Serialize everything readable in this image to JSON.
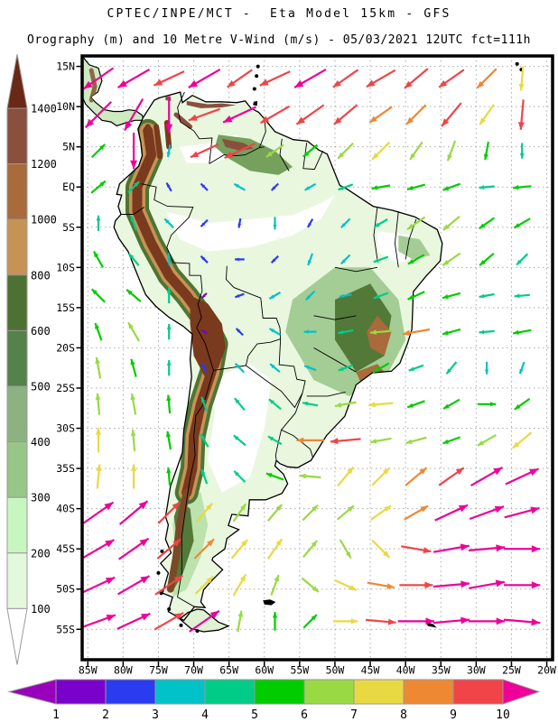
{
  "header": {
    "line1": "CPTEC/INPE/MCT -  Eta Model 15km - GFS",
    "line2": "Orography (m) and 10 Metre V-Wind (m/s) - 05/03/2021 12UTC fct=111h"
  },
  "map": {
    "lat_tick_labels": [
      "15N",
      "10N",
      "5N",
      "EQ",
      "5S",
      "10S",
      "15S",
      "20S",
      "25S",
      "30S",
      "35S",
      "40S",
      "45S",
      "50S",
      "55S"
    ],
    "lon_tick_labels": [
      "85W",
      "80W",
      "75W",
      "70W",
      "65W",
      "60W",
      "55W",
      "50W",
      "45W",
      "40W",
      "35W",
      "30W",
      "25W",
      "20W"
    ]
  },
  "orography_legend": {
    "units": "m",
    "levels": [
      100,
      200,
      300,
      400,
      500,
      600,
      800,
      1000,
      1200,
      1400
    ],
    "colors_low_to_high": [
      "#ffffff",
      "#e4f8dc",
      "#c8f6c0",
      "#98c689",
      "#8cb282",
      "#55814a",
      "#4d7133",
      "#c69355",
      "#a96a3c",
      "#8a4f3d",
      "#6a2817"
    ]
  },
  "wind_legend": {
    "units": "m/s",
    "labels": [
      1,
      2,
      3,
      4,
      5,
      6,
      7,
      8,
      9,
      10
    ],
    "segment_colors": [
      "#7a00cc",
      "#2a3bf0",
      "#00c2c8",
      "#00cc88",
      "#00cc00",
      "#99d944",
      "#e8d943",
      "#ee8833",
      "#f04448"
    ],
    "under_color": "#9900bb",
    "over_color": "#ee0099"
  },
  "chart_data": {
    "type": "map-vector-field",
    "title": "CPTEC/INPE/MCT -  Eta Model 15km - GFS",
    "subtitle": "Orography (m) and 10 Metre V-Wind (m/s) - 05/03/2021 12UTC fct=111h",
    "x_axis": {
      "ticks_deg_west": [
        85,
        80,
        75,
        70,
        65,
        60,
        55,
        50,
        45,
        40,
        35,
        30,
        25,
        20
      ]
    },
    "y_axis": {
      "ticks_deg_north": [
        15,
        10,
        5,
        0,
        -5,
        -10,
        -15,
        -20,
        -25,
        -30,
        -35,
        -40,
        -45,
        -50,
        -55
      ]
    },
    "wind_field": {
      "comment": "dir = direction arrow points, degrees CCW from east (90=north); speed in m/s, 11 means >10",
      "lons": [
        -83.5,
        -78.5,
        -73.5,
        -68.5,
        -63.5,
        -58.5,
        -53.5,
        -48.5,
        -43.5,
        -38.5,
        -33.5,
        -28.5,
        -23.5
      ],
      "lats": [
        13.5,
        9,
        4.5,
        0,
        -4.5,
        -9,
        -13.5,
        -18,
        -22.5,
        -27,
        -31.5,
        -36,
        -40.5,
        -45,
        -49.5,
        -54
      ],
      "dir_speed": [
        [
          [
            215,
            11
          ],
          [
            210,
            11
          ],
          [
            205,
            10
          ],
          [
            210,
            11
          ],
          [
            215,
            9
          ],
          [
            205,
            10
          ],
          [
            210,
            11
          ],
          [
            215,
            9
          ],
          [
            210,
            10
          ],
          [
            220,
            9
          ],
          [
            215,
            9
          ],
          [
            225,
            8
          ],
          [
            265,
            7
          ]
        ],
        [
          [
            225,
            11
          ],
          [
            240,
            11
          ],
          [
            270,
            11
          ],
          [
            200,
            10
          ],
          [
            205,
            11
          ],
          [
            210,
            10
          ],
          [
            215,
            10
          ],
          [
            220,
            9
          ],
          [
            215,
            8
          ],
          [
            225,
            8
          ],
          [
            230,
            9
          ],
          [
            235,
            7
          ],
          [
            265,
            9
          ]
        ],
        [
          [
            45,
            5
          ],
          [
            270,
            11
          ],
          [
            260,
            3
          ],
          [
            205,
            9
          ],
          [
            205,
            10
          ],
          [
            215,
            6
          ],
          [
            220,
            5
          ],
          [
            225,
            6
          ],
          [
            225,
            7
          ],
          [
            235,
            6
          ],
          [
            250,
            6
          ],
          [
            260,
            5
          ],
          [
            270,
            4
          ]
        ],
        [
          [
            40,
            5
          ],
          [
            45,
            4
          ],
          [
            120,
            2
          ],
          [
            135,
            2
          ],
          [
            150,
            3
          ],
          [
            225,
            2
          ],
          [
            210,
            3
          ],
          [
            200,
            4
          ],
          [
            190,
            5
          ],
          [
            195,
            5
          ],
          [
            200,
            5
          ],
          [
            185,
            4
          ],
          [
            185,
            5
          ]
        ],
        [
          [
            90,
            4
          ],
          [
            110,
            4
          ],
          [
            135,
            3
          ],
          [
            225,
            2
          ],
          [
            260,
            2
          ],
          [
            270,
            3
          ],
          [
            240,
            2
          ],
          [
            225,
            3
          ],
          [
            210,
            4
          ],
          [
            215,
            6
          ],
          [
            220,
            6
          ],
          [
            215,
            5
          ],
          [
            210,
            5
          ]
        ],
        [
          [
            120,
            5
          ],
          [
            130,
            4
          ],
          [
            95,
            3
          ],
          [
            135,
            2
          ],
          [
            180,
            2
          ],
          [
            225,
            2
          ],
          [
            250,
            3
          ],
          [
            225,
            3
          ],
          [
            200,
            4
          ],
          [
            210,
            5
          ],
          [
            215,
            6
          ],
          [
            220,
            5
          ],
          [
            225,
            4
          ]
        ],
        [
          [
            135,
            5
          ],
          [
            140,
            5
          ],
          [
            90,
            4
          ],
          [
            225,
            1
          ],
          [
            200,
            2
          ],
          [
            210,
            3
          ],
          [
            225,
            3
          ],
          [
            190,
            3
          ],
          [
            200,
            4
          ],
          [
            205,
            5
          ],
          [
            195,
            5
          ],
          [
            190,
            4
          ],
          [
            185,
            4
          ]
        ],
        [
          [
            110,
            5
          ],
          [
            120,
            6
          ],
          [
            90,
            4
          ],
          [
            150,
            1
          ],
          [
            135,
            2
          ],
          [
            150,
            3
          ],
          [
            180,
            3
          ],
          [
            190,
            4
          ],
          [
            185,
            6
          ],
          [
            190,
            8
          ],
          [
            195,
            5
          ],
          [
            185,
            4
          ],
          [
            190,
            5
          ]
        ],
        [
          [
            100,
            6
          ],
          [
            105,
            5
          ],
          [
            90,
            4
          ],
          [
            120,
            2
          ],
          [
            135,
            3
          ],
          [
            140,
            3
          ],
          [
            160,
            3
          ],
          [
            200,
            4
          ],
          [
            210,
            5
          ],
          [
            200,
            4
          ],
          [
            230,
            4
          ],
          [
            270,
            3
          ],
          [
            250,
            3
          ]
        ],
        [
          [
            95,
            6
          ],
          [
            100,
            6
          ],
          [
            95,
            5
          ],
          [
            110,
            4
          ],
          [
            130,
            4
          ],
          [
            140,
            4
          ],
          [
            170,
            4
          ],
          [
            190,
            6
          ],
          [
            185,
            7
          ],
          [
            200,
            5
          ],
          [
            210,
            5
          ],
          [
            0,
            5
          ],
          [
            215,
            5
          ]
        ],
        [
          [
            90,
            7
          ],
          [
            95,
            6
          ],
          [
            100,
            5
          ],
          [
            120,
            4
          ],
          [
            140,
            4
          ],
          [
            150,
            4
          ],
          [
            180,
            8
          ],
          [
            185,
            9
          ],
          [
            190,
            6
          ],
          [
            195,
            6
          ],
          [
            200,
            5
          ],
          [
            210,
            6
          ],
          [
            220,
            7
          ]
        ],
        [
          [
            85,
            7
          ],
          [
            90,
            7
          ],
          [
            95,
            5
          ],
          [
            110,
            4
          ],
          [
            135,
            4
          ],
          [
            160,
            5
          ],
          [
            175,
            6
          ],
          [
            50,
            7
          ],
          [
            45,
            7
          ],
          [
            40,
            8
          ],
          [
            35,
            9
          ],
          [
            30,
            11
          ],
          [
            25,
            11
          ]
        ],
        [
          [
            35,
            11
          ],
          [
            40,
            11
          ],
          [
            45,
            9
          ],
          [
            50,
            7
          ],
          [
            55,
            6
          ],
          [
            50,
            6
          ],
          [
            45,
            6
          ],
          [
            40,
            6
          ],
          [
            35,
            7
          ],
          [
            30,
            8
          ],
          [
            25,
            11
          ],
          [
            20,
            11
          ],
          [
            15,
            11
          ]
        ],
        [
          [
            30,
            11
          ],
          [
            35,
            11
          ],
          [
            40,
            9
          ],
          [
            45,
            8
          ],
          [
            50,
            7
          ],
          [
            55,
            7
          ],
          [
            50,
            6
          ],
          [
            300,
            6
          ],
          [
            315,
            7
          ],
          [
            350,
            9
          ],
          [
            10,
            11
          ],
          [
            5,
            11
          ],
          [
            0,
            11
          ]
        ],
        [
          [
            25,
            11
          ],
          [
            30,
            11
          ],
          [
            35,
            10
          ],
          [
            45,
            7
          ],
          [
            60,
            7
          ],
          [
            70,
            6
          ],
          [
            320,
            6
          ],
          [
            335,
            7
          ],
          [
            350,
            8
          ],
          [
            0,
            10
          ],
          [
            5,
            11
          ],
          [
            10,
            11
          ],
          [
            0,
            11
          ]
        ],
        [
          [
            20,
            11
          ],
          [
            25,
            11
          ],
          [
            30,
            10
          ],
          [
            35,
            11
          ],
          [
            80,
            6
          ],
          [
            90,
            5
          ],
          [
            45,
            5
          ],
          [
            0,
            7
          ],
          [
            355,
            9
          ],
          [
            0,
            11
          ],
          [
            5,
            11
          ],
          [
            0,
            11
          ],
          [
            355,
            11
          ]
        ]
      ]
    }
  }
}
